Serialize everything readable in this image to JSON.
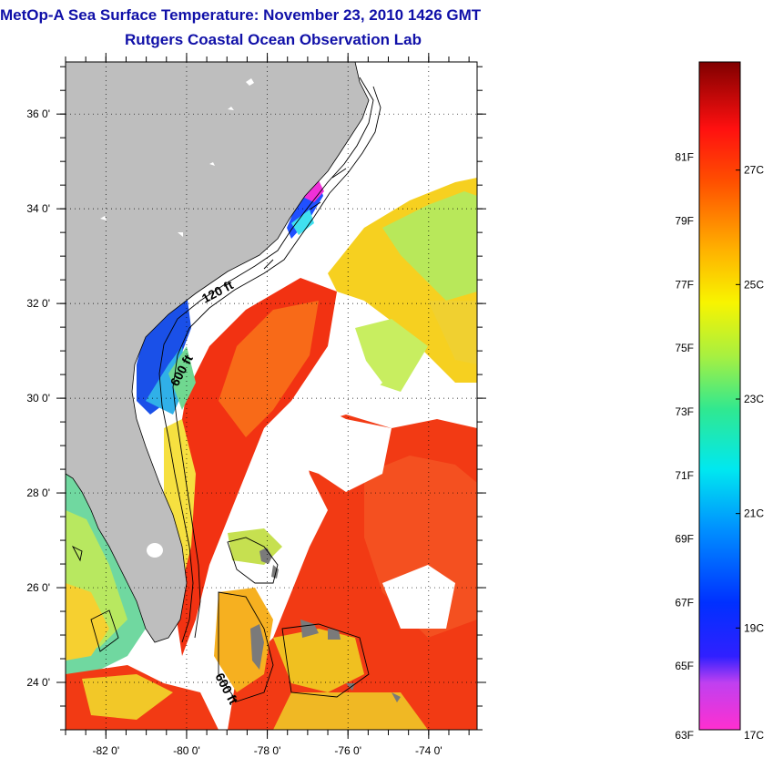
{
  "title": "MetOp-A Sea Surface Temperature:  November 23, 2010 1426 GMT",
  "subtitle": "Rutgers Coastal Ocean Observation Lab",
  "map": {
    "lon_ticks": [
      {
        "value": -82,
        "label": "-82 0'"
      },
      {
        "value": -80,
        "label": "-80 0'"
      },
      {
        "value": -78,
        "label": "-78 0'"
      },
      {
        "value": -76,
        "label": "-76 0'"
      },
      {
        "value": -74,
        "label": "-74 0'"
      }
    ],
    "lat_ticks": [
      {
        "value": 36,
        "label": "36 0'"
      },
      {
        "value": 34,
        "label": "34 0'"
      },
      {
        "value": 32,
        "label": "32 0'"
      },
      {
        "value": 30,
        "label": "30 0'"
      },
      {
        "value": 28,
        "label": "28 0'"
      },
      {
        "value": 26,
        "label": "26 0'"
      },
      {
        "value": 24,
        "label": "24 0'"
      }
    ],
    "lon_range": [
      -83,
      -72.8
    ],
    "lat_range": [
      23,
      37.1
    ],
    "grid": true,
    "contour_labels": [
      "120 ft",
      "600 ft",
      "600 ft"
    ],
    "land_color": "#bebebe"
  },
  "colorbar": {
    "min_f": 63,
    "max_f": 84,
    "fahrenheit_labels": [
      {
        "value": 81,
        "label": "81F"
      },
      {
        "value": 79,
        "label": "79F"
      },
      {
        "value": 77,
        "label": "77F"
      },
      {
        "value": 75,
        "label": "75F"
      },
      {
        "value": 73,
        "label": "73F"
      },
      {
        "value": 71,
        "label": "71F"
      },
      {
        "value": 69,
        "label": "69F"
      },
      {
        "value": 67,
        "label": "67F"
      },
      {
        "value": 65,
        "label": "65F"
      },
      {
        "value": 63,
        "label": "63F"
      }
    ],
    "celsius_labels": [
      {
        "value": 27,
        "label": "27C"
      },
      {
        "value": 25,
        "label": "25C"
      },
      {
        "value": 23,
        "label": "23C"
      },
      {
        "value": 21,
        "label": "21C"
      },
      {
        "value": 19,
        "label": "19C"
      },
      {
        "value": 17,
        "label": "17C"
      }
    ]
  }
}
